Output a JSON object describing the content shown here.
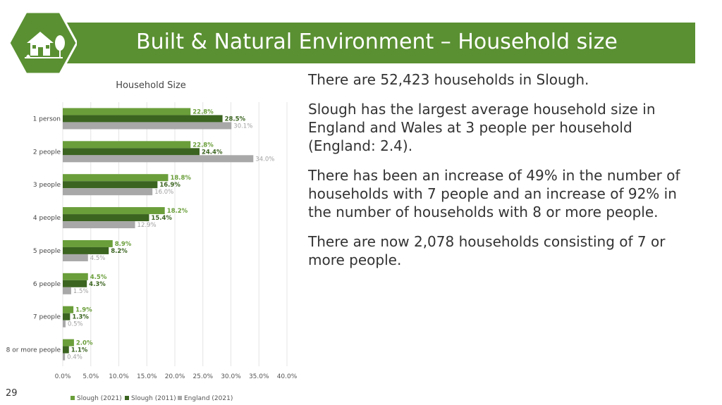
{
  "header": {
    "title": "Built & Natural Environment – Household size",
    "icon": "house-tree-icon"
  },
  "colors": {
    "banner": "#5a9032",
    "slough_2021": "#6a9e3a",
    "slough_2011": "#3b6420",
    "england_2021": "#a8a8a8"
  },
  "chart_data": {
    "type": "bar",
    "orientation": "horizontal",
    "title": "Household Size",
    "categories": [
      "1 person",
      "2 people",
      "3 people",
      "4 people",
      "5 people",
      "6 people",
      "7 people",
      "8 or more people"
    ],
    "series": [
      {
        "name": "Slough (2021)",
        "values": [
          22.8,
          22.8,
          18.8,
          18.2,
          8.9,
          4.5,
          1.9,
          2.0
        ],
        "labels": [
          "22.8%",
          "22.8%",
          "18.8%",
          "18.2%",
          "8.9%",
          "4.5%",
          "1.9%",
          "2.0%"
        ]
      },
      {
        "name": "Slough (2011)",
        "values": [
          28.5,
          24.4,
          16.9,
          15.4,
          8.2,
          4.3,
          1.3,
          1.1
        ],
        "labels": [
          "28.5%",
          "24.4%",
          "16.9%",
          "15.4%",
          "8.2%",
          "4.3%",
          "1.3%",
          "1.1%"
        ]
      },
      {
        "name": "England (2021)",
        "values": [
          30.1,
          34.0,
          16.0,
          12.9,
          4.5,
          1.5,
          0.5,
          0.4
        ],
        "labels": [
          "30.1%",
          "34.0%",
          "16.0%",
          "12.9%",
          "4.5%",
          "1.5%",
          "0.5%",
          "0.4%"
        ]
      }
    ],
    "xlim": [
      0,
      40
    ],
    "xticks": [
      "0.0%",
      "5.0%",
      "10.0%",
      "15.0%",
      "20.0%",
      "25.0%",
      "30.0%",
      "35.0%",
      "40.0%"
    ],
    "grid": true,
    "legend": "bottom"
  },
  "text": {
    "p1": "There are 52,423 households in Slough.",
    "p2": "Slough has the largest average household size in England and Wales at 3 people per household (England: 2.4).",
    "p3": "There has been an increase of 49% in the number of households with 7 people and an increase of 92% in the number of households with 8 or more people.",
    "p4": "There are now 2,078 households consisting of 7 or more people."
  },
  "page_number": "29"
}
